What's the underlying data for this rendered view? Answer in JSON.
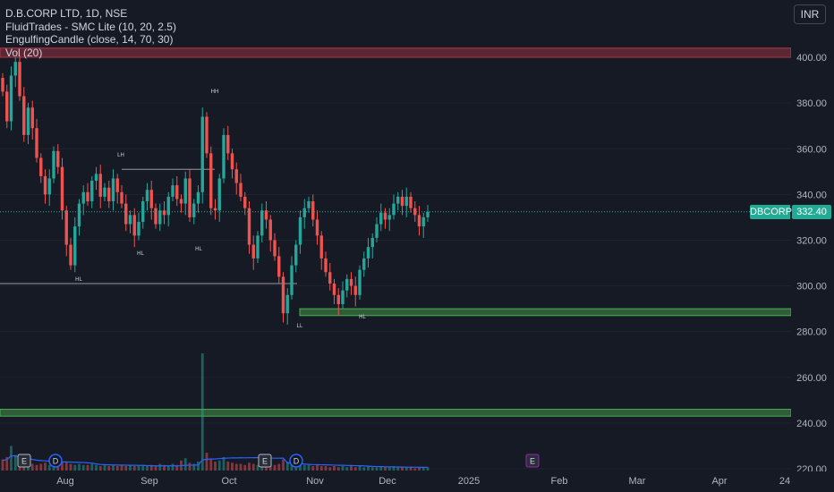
{
  "legend": {
    "symbol_line": "D.B.CORP LTD, 1D, NSE",
    "indicator_1": "FluidTrades - SMC Lite  (10, 20, 2.5)",
    "indicator_2": "EngulfingCandle (close, 14, 70, 30)",
    "indicator_3": "Vol (20)"
  },
  "currency_button": "INR",
  "last_price": {
    "symbol": "DBCORP",
    "value": "332.40"
  },
  "colors": {
    "background": "#161a25",
    "up": "#26a69a",
    "down": "#ef5350",
    "supply_zone": "#b2374a",
    "demand_zone": "#4caf50",
    "axis_text": "#b2b5be",
    "last_price_tag": "#22ab94"
  },
  "chart_data": {
    "type": "candlestick",
    "y_axis": {
      "ticks": [
        220,
        240,
        260,
        280,
        300,
        320,
        340,
        360,
        380,
        400
      ],
      "range": [
        219,
        413
      ]
    },
    "x_axis": {
      "ticks": [
        "Aug",
        "Sep",
        "Oct",
        "Nov",
        "Dec",
        "2025",
        "Feb",
        "Mar",
        "Apr",
        "24"
      ]
    },
    "zones": [
      {
        "kind": "supply",
        "from": 400,
        "to": 404
      },
      {
        "kind": "demand",
        "from": 287,
        "to": 290
      },
      {
        "kind": "demand",
        "from": 243,
        "to": 246
      }
    ],
    "structure_lines": [
      {
        "price": 351,
        "label": "LH"
      },
      {
        "price": 301,
        "label": "HL"
      }
    ],
    "structure_labels": [
      {
        "text": "HH",
        "price": 386
      },
      {
        "text": "LH",
        "price": 355
      },
      {
        "text": "HL",
        "price": 301
      },
      {
        "text": "HL",
        "price": 313
      },
      {
        "text": "HL",
        "price": 315
      },
      {
        "text": "LL",
        "price": 281
      },
      {
        "text": "HL",
        "price": 285
      }
    ],
    "event_markers": [
      "E",
      "D",
      "E",
      "D",
      "E"
    ],
    "last_price": 332.4,
    "closes": [
      385,
      372,
      392,
      398,
      383,
      366,
      378,
      369,
      356,
      348,
      340,
      347,
      359,
      352,
      333,
      318,
      309,
      326,
      336,
      341,
      337,
      346,
      349,
      339,
      343,
      337,
      347,
      341,
      336,
      327,
      331,
      322,
      328,
      337,
      342,
      334,
      327,
      333,
      331,
      339,
      344,
      338,
      336,
      347,
      330,
      336,
      341,
      374,
      358,
      334,
      333,
      347,
      366,
      358,
      351,
      345,
      339,
      334,
      318,
      312,
      322,
      333,
      329,
      320,
      313,
      304,
      288,
      296,
      309,
      318,
      330,
      334,
      337,
      329,
      322,
      312,
      306,
      301,
      296,
      292,
      298,
      303,
      300,
      296,
      307,
      312,
      317,
      321,
      327,
      332,
      329,
      331,
      336,
      339,
      335,
      339,
      334,
      331,
      326,
      330,
      332.4
    ],
    "volumes": [
      1.0,
      1.2,
      2.2,
      1.4,
      0.9,
      0.7,
      0.8,
      0.6,
      0.5,
      0.6,
      0.7,
      0.5,
      0.6,
      0.5,
      0.7,
      0.8,
      0.6,
      0.5,
      0.6,
      0.5,
      0.5,
      0.6,
      0.5,
      0.4,
      0.5,
      0.4,
      0.5,
      0.4,
      0.5,
      0.4,
      0.5,
      0.4,
      0.4,
      0.5,
      0.4,
      0.5,
      0.4,
      0.6,
      0.5,
      0.4,
      0.6,
      0.5,
      0.9,
      1.1,
      0.7,
      0.6,
      0.8,
      10.5,
      1.6,
      1.0,
      0.8,
      0.9,
      1.2,
      0.8,
      0.7,
      0.6,
      0.6,
      0.5,
      0.7,
      0.6,
      0.5,
      0.6,
      0.5,
      0.6,
      0.5,
      0.6,
      1.0,
      0.8,
      0.6,
      0.5,
      0.6,
      0.5,
      0.5,
      0.4,
      0.5,
      0.4,
      0.4,
      0.3,
      0.4,
      0.3,
      0.4,
      0.3,
      0.4,
      0.3,
      0.4,
      0.3,
      0.4,
      0.3,
      0.3,
      0.4,
      0.3,
      0.3,
      0.4,
      0.3,
      0.3,
      0.3,
      0.3,
      0.2,
      0.3,
      0.3,
      0.3
    ]
  }
}
